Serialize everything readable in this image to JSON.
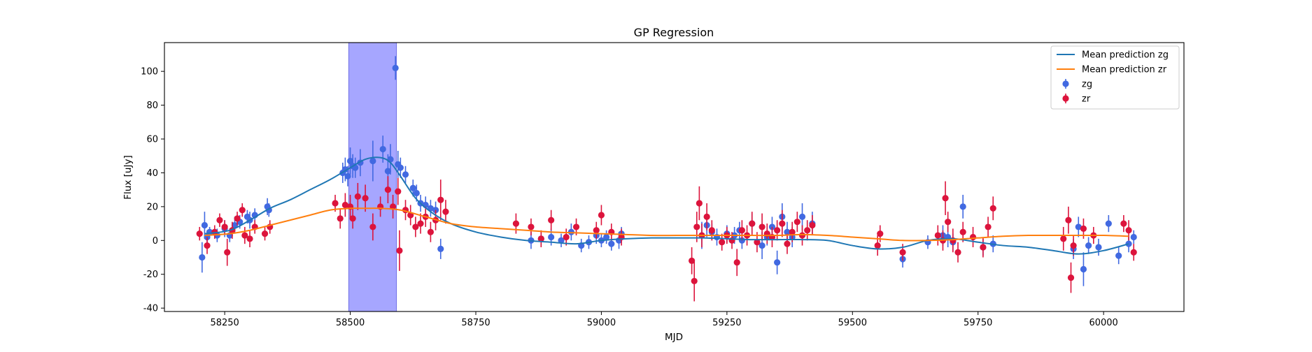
{
  "chart_data": {
    "type": "scatter",
    "title": "GP Regression",
    "xlabel": "MJD",
    "ylabel": "Flux [uJy]",
    "xlim": [
      58130,
      60160
    ],
    "ylim": [
      -42,
      117
    ],
    "x_ticks": [
      58250,
      58500,
      58750,
      59000,
      59250,
      59500,
      59750,
      60000
    ],
    "y_ticks": [
      -40,
      -20,
      0,
      20,
      40,
      60,
      80,
      100
    ],
    "grid": false,
    "legend_position": "top-right",
    "shaded_region": {
      "x_range": [
        58497,
        58592
      ],
      "color": "#a6a6ff"
    },
    "legend": [
      {
        "label": "Mean prediction zg",
        "kind": "line",
        "color": "#1f77b4"
      },
      {
        "label": "Mean prediction zr",
        "kind": "line",
        "color": "#ff7f0e"
      },
      {
        "label": "zg",
        "kind": "errorbar",
        "color": "#4169e1"
      },
      {
        "label": "zr",
        "kind": "errorbar",
        "color": "#dc143c"
      }
    ],
    "lines": [
      {
        "name": "Mean prediction zg",
        "color": "#1f77b4",
        "x": [
          58210,
          58260,
          58300,
          58340,
          58380,
          58420,
          58460,
          58500,
          58530,
          58560,
          58580,
          58600,
          58630,
          58660,
          58700,
          58750,
          58800,
          58850,
          58900,
          58950,
          59000,
          59050,
          59100,
          59150,
          59200,
          59250,
          59300,
          59350,
          59400,
          59450,
          59500,
          59550,
          59600,
          59650,
          59700,
          59750,
          59800,
          59850,
          59900,
          59950,
          60000,
          60050
        ],
        "y": [
          4,
          6,
          12,
          19,
          24,
          30,
          36,
          43,
          48,
          49,
          46,
          38,
          25,
          17,
          10,
          5,
          2,
          0,
          -1,
          -2,
          0,
          1,
          1.5,
          1.5,
          1.5,
          1,
          0.5,
          0.5,
          0.5,
          0,
          -3,
          -5,
          -4,
          0,
          1,
          -1,
          -3,
          -4,
          -6,
          -8,
          -6,
          -2
        ]
      },
      {
        "name": "Mean prediction zr",
        "color": "#ff7f0e",
        "x": [
          58210,
          58260,
          58300,
          58340,
          58380,
          58420,
          58460,
          58500,
          58530,
          58560,
          58600,
          58650,
          58700,
          58750,
          58800,
          58850,
          58900,
          58950,
          59000,
          59050,
          59100,
          59150,
          59200,
          59250,
          59300,
          59350,
          59400,
          59450,
          59500,
          59550,
          59600,
          59650,
          59700,
          59750,
          59800,
          59850,
          59900,
          59950,
          60000,
          60050
        ],
        "y": [
          3,
          4,
          6,
          9,
          12,
          15,
          18,
          19,
          19,
          19,
          18,
          14,
          10,
          8,
          7,
          6,
          5,
          4.5,
          4,
          3.5,
          3,
          3,
          3,
          3,
          3,
          3,
          3.5,
          3,
          2,
          1,
          0,
          0,
          0.5,
          1.5,
          2.5,
          3,
          3,
          3,
          3,
          2.5
        ]
      }
    ],
    "series": [
      {
        "name": "zg",
        "color": "#4169e1",
        "x": [
          58205,
          58210,
          58215,
          58220,
          58235,
          58250,
          58260,
          58270,
          58280,
          58295,
          58300,
          58310,
          58335,
          58338,
          58485,
          58490,
          58495,
          58500,
          58505,
          58510,
          58520,
          58545,
          58565,
          58575,
          58580,
          58590,
          58595,
          58600,
          58610,
          58625,
          58632,
          58640,
          58650,
          58660,
          58670,
          58680,
          58860,
          58880,
          58900,
          58920,
          58940,
          58960,
          58975,
          58990,
          59000,
          59010,
          59020,
          59035,
          59040,
          59200,
          59210,
          59220,
          59230,
          59250,
          59265,
          59275,
          59280,
          59300,
          59320,
          59330,
          59340,
          59350,
          59360,
          59370,
          59380,
          59400,
          59420,
          59600,
          59650,
          59680,
          59690,
          59700,
          59720,
          59760,
          59780,
          59940,
          59950,
          59960,
          59970,
          59990,
          60010,
          60030,
          60050,
          60060
        ],
        "y": [
          -10,
          9,
          2,
          5,
          3,
          7,
          3,
          9,
          11,
          14,
          12,
          15,
          20,
          18,
          40,
          42,
          38,
          47,
          44,
          43,
          46,
          47,
          54,
          41,
          48,
          102,
          45,
          43,
          39,
          31,
          28,
          22,
          21,
          19,
          18,
          -5,
          0,
          1,
          2,
          0,
          5,
          -3,
          -1,
          3,
          0,
          2,
          -2,
          0,
          4,
          3,
          9,
          5,
          2,
          4,
          3,
          6,
          0,
          10,
          -3,
          2,
          8,
          -13,
          14,
          5,
          2,
          14,
          10,
          -11,
          -1,
          3,
          2,
          -1,
          20,
          -4,
          -2,
          -5,
          8,
          -17,
          -3,
          -4,
          10,
          -9,
          -2,
          2
        ],
        "err": [
          9,
          8,
          4,
          3,
          4,
          5,
          4,
          5,
          4,
          4,
          5,
          4,
          5,
          4,
          6,
          7,
          6,
          8,
          7,
          6,
          8,
          12,
          8,
          10,
          9,
          7,
          8,
          6,
          5,
          5,
          5,
          5,
          5,
          5,
          5,
          6,
          5,
          4,
          5,
          4,
          5,
          4,
          4,
          5,
          4,
          4,
          4,
          5,
          4,
          8,
          7,
          5,
          5,
          5,
          5,
          5,
          5,
          6,
          8,
          5,
          6,
          7,
          8,
          6,
          6,
          8,
          7,
          5,
          4,
          6,
          6,
          5,
          7,
          5,
          5,
          6,
          6,
          10,
          5,
          5,
          5,
          5,
          5,
          4
        ]
      },
      {
        "name": "zr",
        "color": "#dc143c",
        "x": [
          58200,
          58215,
          58230,
          58240,
          58250,
          58255,
          58265,
          58275,
          58285,
          58290,
          58300,
          58310,
          58330,
          58340,
          58470,
          58480,
          58490,
          58500,
          58505,
          58515,
          58530,
          58545,
          58560,
          58575,
          58585,
          58595,
          58598,
          58610,
          58620,
          58630,
          58640,
          58650,
          58660,
          58670,
          58680,
          58690,
          58830,
          58860,
          58880,
          58900,
          58930,
          58950,
          58990,
          59000,
          59020,
          59040,
          59180,
          59185,
          59190,
          59195,
          59200,
          59210,
          59220,
          59240,
          59250,
          59260,
          59270,
          59280,
          59290,
          59300,
          59310,
          59320,
          59330,
          59340,
          59350,
          59360,
          59370,
          59380,
          59390,
          59400,
          59410,
          59420,
          59550,
          59555,
          59600,
          59670,
          59680,
          59685,
          59690,
          59700,
          59710,
          59720,
          59740,
          59760,
          59770,
          59780,
          59920,
          59930,
          59935,
          59940,
          59960,
          59980,
          60040,
          60050,
          60060
        ],
        "y": [
          4,
          -3,
          5,
          12,
          8,
          -7,
          6,
          13,
          18,
          3,
          1,
          8,
          4,
          8,
          22,
          13,
          21,
          20,
          13,
          26,
          25,
          8,
          20,
          30,
          20,
          29,
          -6,
          18,
          15,
          8,
          10,
          14,
          5,
          12,
          24,
          17,
          10,
          8,
          1,
          12,
          2,
          8,
          6,
          15,
          5,
          2,
          -12,
          -24,
          8,
          22,
          3,
          14,
          6,
          -1,
          3,
          0,
          -13,
          6,
          3,
          10,
          -1,
          8,
          4,
          2,
          6,
          10,
          -2,
          5,
          11,
          3,
          6,
          9,
          -3,
          4,
          -7,
          3,
          0,
          25,
          11,
          0,
          -7,
          5,
          2,
          -4,
          8,
          19,
          1,
          12,
          -22,
          -3,
          7,
          3,
          10,
          6,
          -7
        ],
        "err": [
          4,
          5,
          4,
          4,
          4,
          8,
          5,
          4,
          4,
          5,
          5,
          4,
          4,
          4,
          5,
          6,
          7,
          7,
          6,
          8,
          8,
          8,
          6,
          8,
          7,
          8,
          12,
          6,
          6,
          6,
          6,
          6,
          6,
          6,
          12,
          7,
          6,
          5,
          5,
          6,
          5,
          5,
          5,
          6,
          5,
          5,
          8,
          12,
          9,
          10,
          7,
          8,
          6,
          5,
          5,
          5,
          8,
          6,
          6,
          7,
          6,
          8,
          6,
          6,
          6,
          8,
          6,
          6,
          6,
          6,
          6,
          6,
          6,
          5,
          5,
          6,
          6,
          10,
          6,
          7,
          6,
          6,
          6,
          6,
          6,
          7,
          7,
          8,
          9,
          6,
          6,
          5,
          5,
          6,
          5
        ]
      }
    ]
  }
}
